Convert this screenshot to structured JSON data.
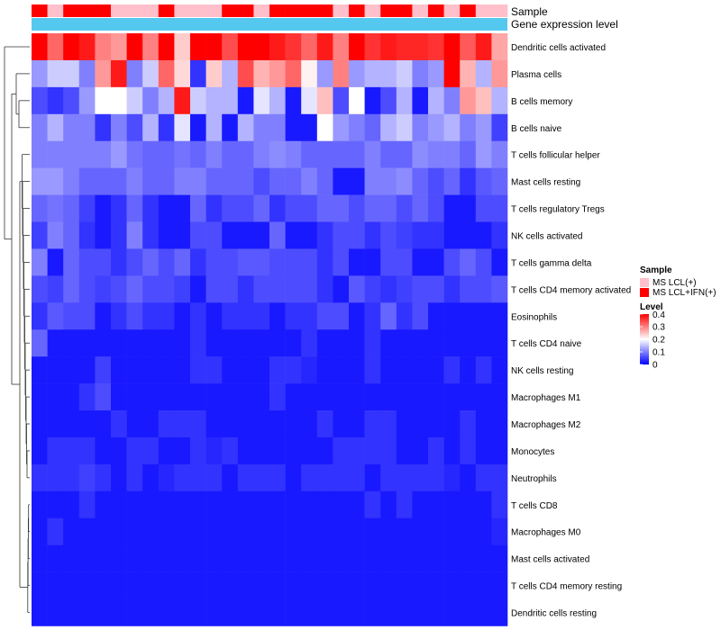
{
  "chart_data": {
    "type": "heatmap",
    "annotation_tracks": [
      "Sample",
      "Gene expression level"
    ],
    "samples": [
      "MS LCL+IFN(+)",
      "MS LCL(+)",
      "MS LCL+IFN(+)",
      "MS LCL+IFN(+)",
      "MS LCL+IFN(+)",
      "MS LCL(+)",
      "MS LCL(+)",
      "MS LCL(+)",
      "MS LCL+IFN(+)",
      "MS LCL(+)",
      "MS LCL(+)",
      "MS LCL(+)",
      "MS LCL+IFN(+)",
      "MS LCL+IFN(+)",
      "MS LCL(+)",
      "MS LCL+IFN(+)",
      "MS LCL+IFN(+)",
      "MS LCL+IFN(+)",
      "MS LCL+IFN(+)",
      "MS LCL(+)",
      "MS LCL+IFN(+)",
      "MS LCL(+)",
      "MS LCL+IFN(+)",
      "MS LCL+IFN(+)",
      "MS LCL(+)",
      "MS LCL+IFN(+)",
      "MS LCL(+)",
      "MS LCL+IFN(+)",
      "MS LCL(+)",
      "MS LCL(+)"
    ],
    "rows": [
      {
        "label": "Dendritic cells activated",
        "values": [
          0.4,
          0.32,
          0.4,
          0.38,
          0.3,
          0.28,
          0.4,
          0.3,
          0.4,
          0.24,
          0.4,
          0.4,
          0.34,
          0.4,
          0.4,
          0.38,
          0.36,
          0.32,
          0.38,
          0.3,
          0.4,
          0.36,
          0.38,
          0.37,
          0.37,
          0.36,
          0.4,
          0.33,
          0.38,
          0.27
        ]
      },
      {
        "label": "Plasma cells",
        "values": [
          0.12,
          0.16,
          0.16,
          0.1,
          0.28,
          0.38,
          0.1,
          0.16,
          0.32,
          0.23,
          0.04,
          0.24,
          0.14,
          0.34,
          0.26,
          0.28,
          0.32,
          0.21,
          0.12,
          0.3,
          0.12,
          0.14,
          0.14,
          0.16,
          0.1,
          0.12,
          0.42,
          0.26,
          0.14,
          0.28
        ]
      },
      {
        "label": "B cells memory",
        "values": [
          0.06,
          0.04,
          0.06,
          0.12,
          0.2,
          0.2,
          0.16,
          0.1,
          0.14,
          0.38,
          0.16,
          0.14,
          0.14,
          0.02,
          0.18,
          0.14,
          0.02,
          0.18,
          0.25,
          0.06,
          0.2,
          0.02,
          0.06,
          0.14,
          0.02,
          0.14,
          0.1,
          0.28,
          0.25,
          0.14
        ]
      },
      {
        "label": "B cells naive",
        "values": [
          0.1,
          0.14,
          0.1,
          0.1,
          0.04,
          0.1,
          0.06,
          0.14,
          0.04,
          0.18,
          0.02,
          0.14,
          0.02,
          0.14,
          0.1,
          0.1,
          0.02,
          0.02,
          0.2,
          0.12,
          0.1,
          0.08,
          0.14,
          0.16,
          0.1,
          0.12,
          0.14,
          0.1,
          0.12,
          0.05
        ]
      },
      {
        "label": "T cells follicular helper",
        "values": [
          0.1,
          0.1,
          0.1,
          0.1,
          0.1,
          0.12,
          0.09,
          0.08,
          0.08,
          0.09,
          0.08,
          0.1,
          0.08,
          0.08,
          0.1,
          0.11,
          0.1,
          0.08,
          0.08,
          0.08,
          0.08,
          0.1,
          0.08,
          0.08,
          0.11,
          0.1,
          0.1,
          0.08,
          0.12,
          0.1
        ]
      },
      {
        "label": "Mast cells resting",
        "values": [
          0.12,
          0.12,
          0.1,
          0.08,
          0.08,
          0.08,
          0.1,
          0.08,
          0.08,
          0.1,
          0.1,
          0.08,
          0.08,
          0.08,
          0.06,
          0.08,
          0.08,
          0.1,
          0.08,
          0.02,
          0.02,
          0.1,
          0.1,
          0.11,
          0.08,
          0.06,
          0.08,
          0.04,
          0.07,
          0.08
        ]
      },
      {
        "label": "T cells regulatory  Tregs",
        "values": [
          0.08,
          0.09,
          0.08,
          0.05,
          0.02,
          0.04,
          0.08,
          0.04,
          0.02,
          0.02,
          0.08,
          0.04,
          0.06,
          0.06,
          0.08,
          0.04,
          0.06,
          0.06,
          0.08,
          0.08,
          0.06,
          0.08,
          0.08,
          0.06,
          0.08,
          0.06,
          0.02,
          0.02,
          0.06,
          0.06
        ]
      },
      {
        "label": "NK cells activated",
        "values": [
          0.05,
          0.1,
          0.08,
          0.04,
          0.02,
          0.04,
          0.1,
          0.04,
          0.02,
          0.02,
          0.06,
          0.06,
          0.02,
          0.02,
          0.02,
          0.08,
          0.02,
          0.02,
          0.04,
          0.06,
          0.06,
          0.04,
          0.06,
          0.05,
          0.04,
          0.04,
          0.02,
          0.02,
          0.02,
          0.04
        ]
      },
      {
        "label": "T cells gamma delta",
        "values": [
          0.1,
          0.02,
          0.08,
          0.06,
          0.06,
          0.04,
          0.06,
          0.08,
          0.06,
          0.08,
          0.04,
          0.06,
          0.06,
          0.07,
          0.07,
          0.06,
          0.06,
          0.06,
          0.04,
          0.06,
          0.02,
          0.02,
          0.06,
          0.06,
          0.02,
          0.02,
          0.06,
          0.08,
          0.06,
          0.02
        ]
      },
      {
        "label": "T cells CD4 memory activated",
        "values": [
          0.06,
          0.05,
          0.08,
          0.06,
          0.05,
          0.06,
          0.08,
          0.06,
          0.06,
          0.05,
          0.02,
          0.06,
          0.06,
          0.04,
          0.06,
          0.06,
          0.06,
          0.06,
          0.04,
          0.02,
          0.07,
          0.05,
          0.04,
          0.05,
          0.06,
          0.06,
          0.04,
          0.06,
          0.06,
          0.07
        ]
      },
      {
        "label": "Eosinophils",
        "values": [
          0.04,
          0.07,
          0.06,
          0.06,
          0.02,
          0.04,
          0.06,
          0.04,
          0.04,
          0.02,
          0.04,
          0.02,
          0.04,
          0.04,
          0.04,
          0.02,
          0.04,
          0.04,
          0.06,
          0.06,
          0.02,
          0.04,
          0.08,
          0.04,
          0.06,
          0.02,
          0.02,
          0.02,
          0.02,
          0.02
        ]
      },
      {
        "label": "T cells CD4 naive",
        "values": [
          0.08,
          0.02,
          0.02,
          0.02,
          0.02,
          0.02,
          0.02,
          0.02,
          0.02,
          0.02,
          0.04,
          0.02,
          0.02,
          0.02,
          0.02,
          0.02,
          0.02,
          0.04,
          0.02,
          0.02,
          0.02,
          0.04,
          0.02,
          0.02,
          0.02,
          0.02,
          0.02,
          0.02,
          0.02,
          0.02
        ]
      },
      {
        "label": "NK cells resting",
        "values": [
          0.02,
          0.02,
          0.02,
          0.02,
          0.05,
          0.02,
          0.02,
          0.02,
          0.02,
          0.02,
          0.04,
          0.04,
          0.02,
          0.02,
          0.02,
          0.04,
          0.04,
          0.03,
          0.02,
          0.02,
          0.02,
          0.04,
          0.02,
          0.02,
          0.02,
          0.02,
          0.04,
          0.02,
          0.04,
          0.02
        ]
      },
      {
        "label": "Macrophages M1",
        "values": [
          0.02,
          0.02,
          0.02,
          0.04,
          0.06,
          0.02,
          0.02,
          0.02,
          0.02,
          0.02,
          0.02,
          0.02,
          0.02,
          0.02,
          0.02,
          0.04,
          0.02,
          0.02,
          0.02,
          0.02,
          0.02,
          0.02,
          0.02,
          0.02,
          0.02,
          0.02,
          0.02,
          0.02,
          0.02,
          0.02
        ]
      },
      {
        "label": "Macrophages M2",
        "values": [
          0.02,
          0.02,
          0.02,
          0.02,
          0.02,
          0.04,
          0.02,
          0.02,
          0.04,
          0.04,
          0.04,
          0.02,
          0.02,
          0.02,
          0.02,
          0.02,
          0.02,
          0.02,
          0.04,
          0.02,
          0.02,
          0.04,
          0.04,
          0.02,
          0.02,
          0.02,
          0.02,
          0.04,
          0.02,
          0.02
        ]
      },
      {
        "label": "Monocytes",
        "values": [
          0.02,
          0.04,
          0.04,
          0.04,
          0.02,
          0.02,
          0.04,
          0.04,
          0.02,
          0.02,
          0.04,
          0.03,
          0.04,
          0.02,
          0.02,
          0.02,
          0.02,
          0.02,
          0.02,
          0.04,
          0.04,
          0.04,
          0.04,
          0.02,
          0.02,
          0.04,
          0.02,
          0.04,
          0.02,
          0.02
        ]
      },
      {
        "label": "Neutrophils",
        "values": [
          0.04,
          0.04,
          0.04,
          0.05,
          0.04,
          0.02,
          0.04,
          0.02,
          0.03,
          0.04,
          0.04,
          0.04,
          0.02,
          0.04,
          0.04,
          0.04,
          0.02,
          0.04,
          0.04,
          0.04,
          0.04,
          0.02,
          0.04,
          0.04,
          0.04,
          0.04,
          0.03,
          0.02,
          0.04,
          0.04
        ]
      },
      {
        "label": "T cells CD8",
        "values": [
          0.02,
          0.02,
          0.02,
          0.04,
          0.02,
          0.02,
          0.02,
          0.02,
          0.02,
          0.02,
          0.02,
          0.02,
          0.02,
          0.02,
          0.02,
          0.02,
          0.02,
          0.02,
          0.02,
          0.02,
          0.02,
          0.04,
          0.02,
          0.04,
          0.02,
          0.02,
          0.02,
          0.02,
          0.02,
          0.04
        ]
      },
      {
        "label": "Macrophages M0",
        "values": [
          0.02,
          0.04,
          0.02,
          0.02,
          0.02,
          0.02,
          0.02,
          0.02,
          0.02,
          0.02,
          0.02,
          0.02,
          0.02,
          0.02,
          0.02,
          0.02,
          0.02,
          0.02,
          0.02,
          0.02,
          0.02,
          0.02,
          0.02,
          0.02,
          0.02,
          0.02,
          0.02,
          0.02,
          0.02,
          0.03
        ]
      },
      {
        "label": "Mast cells activated",
        "values": [
          0.02,
          0.02,
          0.02,
          0.02,
          0.02,
          0.02,
          0.02,
          0.02,
          0.02,
          0.02,
          0.02,
          0.02,
          0.02,
          0.02,
          0.02,
          0.02,
          0.02,
          0.02,
          0.02,
          0.02,
          0.02,
          0.02,
          0.02,
          0.02,
          0.02,
          0.02,
          0.02,
          0.02,
          0.02,
          0.02
        ]
      },
      {
        "label": "T cells CD4 memory resting",
        "values": [
          0.02,
          0.02,
          0.02,
          0.02,
          0.02,
          0.02,
          0.02,
          0.02,
          0.02,
          0.02,
          0.02,
          0.02,
          0.02,
          0.02,
          0.02,
          0.02,
          0.02,
          0.02,
          0.02,
          0.02,
          0.02,
          0.02,
          0.02,
          0.02,
          0.02,
          0.02,
          0.02,
          0.02,
          0.02,
          0.02
        ]
      },
      {
        "label": "Dendritic cells resting",
        "values": [
          0.02,
          0.02,
          0.02,
          0.02,
          0.02,
          0.02,
          0.02,
          0.02,
          0.02,
          0.02,
          0.02,
          0.02,
          0.02,
          0.02,
          0.02,
          0.02,
          0.02,
          0.02,
          0.02,
          0.02,
          0.02,
          0.02,
          0.02,
          0.02,
          0.02,
          0.02,
          0.02,
          0.02,
          0.02,
          0.02
        ]
      }
    ],
    "legends": {
      "sample": {
        "title": "Sample",
        "items": [
          {
            "label": "MS LCL(+)",
            "color": "#ffc0cb"
          },
          {
            "label": "MS LCL+IFN(+)",
            "color": "#ff0000"
          }
        ]
      },
      "level": {
        "title": "Level",
        "ticks": [
          "0.4",
          "0.3",
          "0.2",
          "0.1",
          "0"
        ],
        "range": [
          0,
          0.4
        ],
        "colors": [
          "#0000ff",
          "#ffffff",
          "#ff0000"
        ]
      }
    },
    "gene_expression_color": "#55c8f0",
    "dendrogram": "row"
  }
}
